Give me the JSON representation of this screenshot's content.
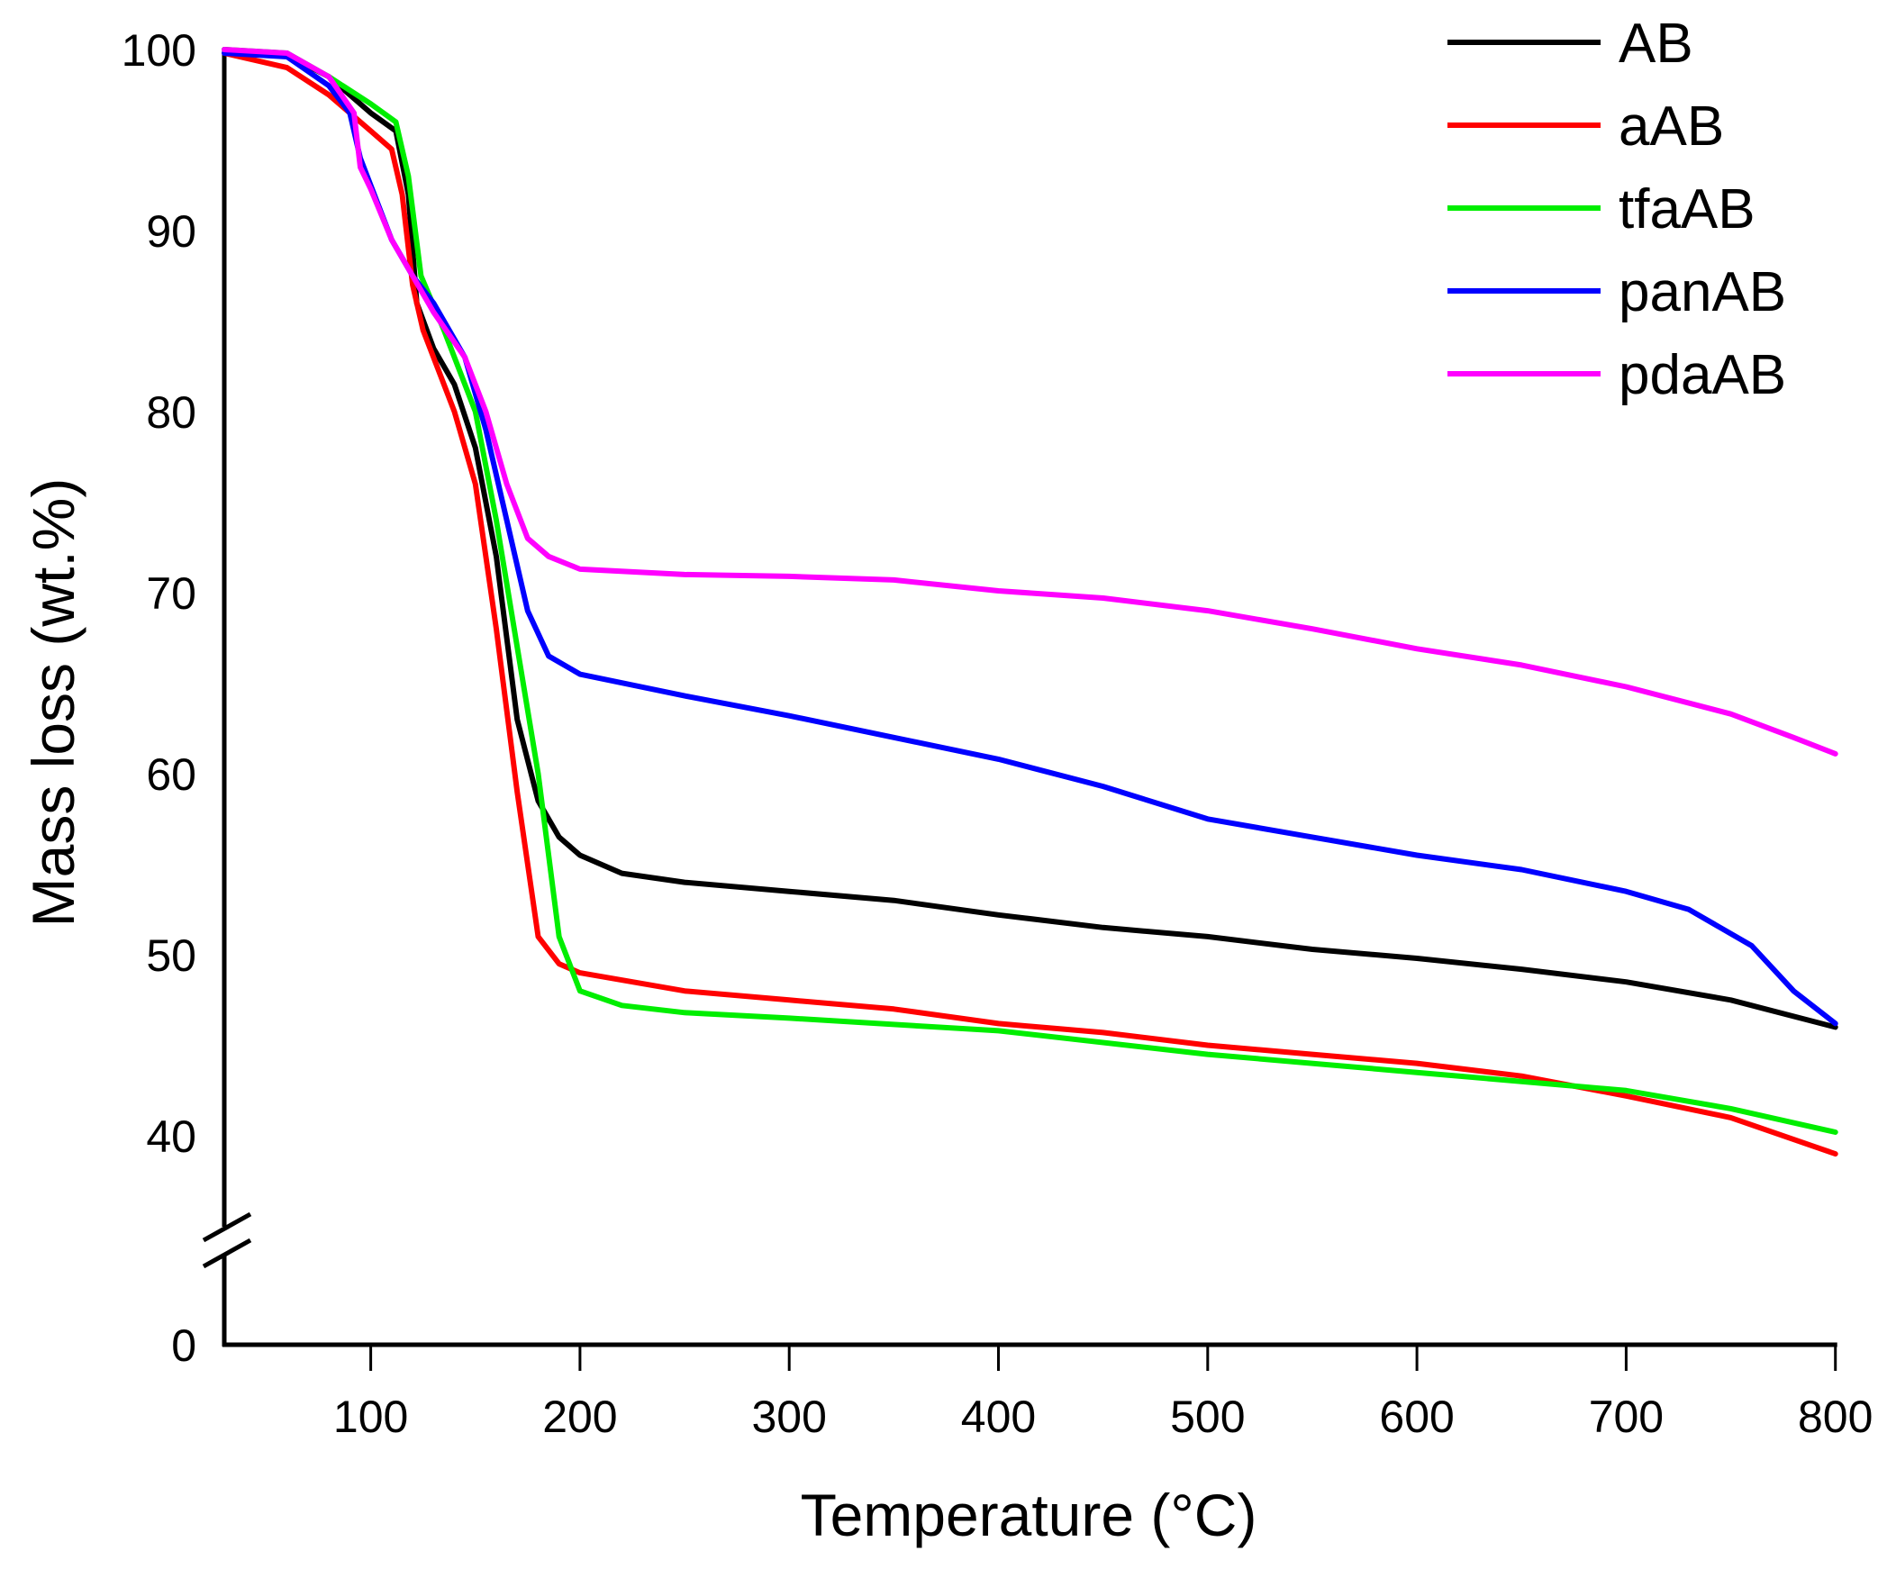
{
  "chart_data": {
    "type": "line",
    "xlabel": "Temperature (°C)",
    "ylabel": "Mass loss (wt.%)",
    "xlim": [
      30,
      800
    ],
    "ylim": [
      0,
      100
    ],
    "y_axis_break": [
      0,
      40
    ],
    "x_ticks": [
      100,
      200,
      300,
      400,
      500,
      600,
      700,
      800
    ],
    "y_ticks": [
      100,
      90,
      80,
      70,
      60,
      50,
      40,
      0
    ],
    "grid": false,
    "legend_placement": "top-right",
    "series": [
      {
        "name": "AB",
        "color": "#000000",
        "x": [
          30,
          60,
          80,
          100,
          112,
          118,
          122,
          130,
          140,
          150,
          160,
          170,
          180,
          190,
          200,
          220,
          250,
          300,
          350,
          400,
          450,
          500,
          550,
          600,
          650,
          700,
          750,
          800
        ],
        "y": [
          100,
          99.7,
          98.5,
          96.5,
          95.5,
          92,
          86,
          83.5,
          81.5,
          78,
          72,
          63,
          58.5,
          56.5,
          55.5,
          54.5,
          54,
          53.5,
          53,
          52.2,
          51.5,
          51,
          50.3,
          49.8,
          49.2,
          48.5,
          47.5,
          46
        ]
      },
      {
        "name": "aAB",
        "color": "#ff0000",
        "x": [
          30,
          60,
          80,
          100,
          110,
          115,
          120,
          125,
          140,
          150,
          160,
          170,
          180,
          190,
          200,
          250,
          300,
          350,
          400,
          450,
          500,
          550,
          600,
          650,
          700,
          750,
          800
        ],
        "y": [
          99.8,
          99,
          97.5,
          95.5,
          94.5,
          92,
          87,
          84.5,
          80,
          76,
          68,
          59,
          51,
          49.5,
          49,
          48,
          47.5,
          47,
          46.2,
          45.7,
          45,
          44.5,
          44,
          43.3,
          42.2,
          41,
          39
        ]
      },
      {
        "name": "tfaAB",
        "color": "#00ee00",
        "x": [
          30,
          60,
          80,
          100,
          112,
          118,
          124,
          135,
          150,
          160,
          170,
          180,
          190,
          200,
          220,
          250,
          300,
          400,
          500,
          600,
          700,
          750,
          800
        ],
        "y": [
          100,
          99.8,
          98.5,
          97,
          96,
          93,
          87.5,
          84.5,
          80,
          74,
          67,
          60,
          51,
          48,
          47.2,
          46.8,
          46.5,
          45.8,
          44.5,
          43.5,
          42.5,
          41.5,
          40.2
        ]
      },
      {
        "name": "panAB",
        "color": "#0000ff",
        "x": [
          30,
          60,
          80,
          90,
          95,
          100,
          110,
          120,
          130,
          145,
          155,
          165,
          175,
          185,
          200,
          250,
          300,
          350,
          400,
          450,
          500,
          550,
          600,
          650,
          700,
          730,
          760,
          780,
          800
        ],
        "y": [
          99.8,
          99.6,
          98,
          96.5,
          94,
          92.5,
          89.5,
          87.5,
          86,
          83,
          79,
          74,
          69,
          66.5,
          65.5,
          64.3,
          63.2,
          62,
          60.8,
          59.3,
          57.5,
          56.5,
          55.5,
          54.7,
          53.5,
          52.5,
          50.5,
          48,
          46.2
        ]
      },
      {
        "name": "pdaAB",
        "color": "#ff00ff",
        "x": [
          30,
          60,
          80,
          92,
          95,
          100,
          110,
          120,
          130,
          145,
          155,
          165,
          175,
          185,
          200,
          250,
          300,
          350,
          400,
          450,
          500,
          550,
          600,
          650,
          700,
          750,
          780,
          800
        ],
        "y": [
          100,
          99.8,
          98.5,
          96.5,
          93.5,
          92.3,
          89.5,
          87.5,
          85.5,
          83,
          80,
          76,
          73,
          72,
          71.3,
          71,
          70.9,
          70.7,
          70.1,
          69.7,
          69,
          68,
          66.9,
          66,
          64.8,
          63.3,
          62,
          61.1
        ]
      }
    ]
  }
}
